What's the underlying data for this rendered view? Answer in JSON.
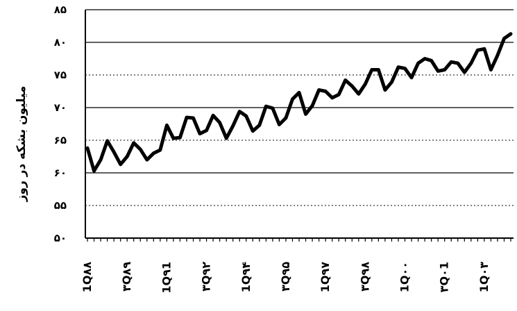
{
  "chart_data": {
    "type": "line",
    "ylabel": "میلیون بشکه در روز",
    "xlabel": "",
    "title": "",
    "ylim": [
      50,
      85
    ],
    "yticks": [
      50,
      55,
      60,
      65,
      70,
      75,
      80,
      85
    ],
    "ytick_labels": [
      "۵۰",
      "۵۵",
      "۶۰",
      "۶۵",
      "۷۰",
      "۷۵",
      "۸۰",
      "۸۵"
    ],
    "x_tick_labels": [
      "1Q۸۸",
      "۳Q۸۹",
      "1Q۹1",
      "۳Q۹۲",
      "1Q۹۴",
      "۳Q۹۵",
      "1Q۹۷",
      "۳Q۹۸",
      "1Q۰۰",
      "۳Q۰1",
      "1Q۰۳"
    ],
    "x_tick_quarter_index": [
      0,
      6,
      12,
      18,
      24,
      30,
      36,
      42,
      48,
      54,
      60
    ],
    "grid": true,
    "legend": "none",
    "series": [
      {
        "color": "#000000",
        "values": [
          63.8,
          60.3,
          62.0,
          64.9,
          63.2,
          61.3,
          62.5,
          64.6,
          63.6,
          62.0,
          63.0,
          63.5,
          67.3,
          65.3,
          65.4,
          68.5,
          68.4,
          66.0,
          66.5,
          68.8,
          67.7,
          65.3,
          67.2,
          69.4,
          68.7,
          66.4,
          67.3,
          70.2,
          69.9,
          67.4,
          68.4,
          71.3,
          72.3,
          69.0,
          70.3,
          72.7,
          72.5,
          71.5,
          72.0,
          74.2,
          73.3,
          72.1,
          73.6,
          75.8,
          75.8,
          72.7,
          73.9,
          76.2,
          76.0,
          74.6,
          76.8,
          77.5,
          77.2,
          75.6,
          75.8,
          77.0,
          76.8,
          75.4,
          76.8,
          78.8,
          79.0,
          75.8,
          78.0,
          80.6,
          81.3
        ]
      }
    ]
  }
}
